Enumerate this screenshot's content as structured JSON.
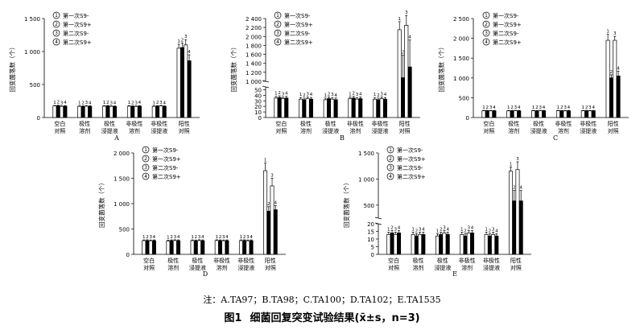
{
  "figure": {
    "label": "图1",
    "title": "细菌回复突变试验结果",
    "stat": "(x̄±s，n=3)",
    "note": "注：A.TA97；B.TA98；C.TA100；D.TA102；E.TA1535"
  },
  "legend_items": [
    {
      "num": "1",
      "label": "第一次S9-",
      "fill": "#ffffff"
    },
    {
      "num": "2",
      "label": "第一次S9+",
      "fill": "#000000"
    },
    {
      "num": "3",
      "label": "第二次S9-",
      "fill": "#ffffff"
    },
    {
      "num": "4",
      "label": "第二次S9+",
      "fill": "#000000"
    }
  ],
  "bar_numbers": [
    "1",
    "2",
    "3",
    "4"
  ],
  "colors": {
    "dark_bar": "#000000",
    "light_bar": "#ffffff",
    "axis": "#000000"
  },
  "chart_data": [
    {
      "type": "bar",
      "panel": "A",
      "ylabel": "回变菌落数（个）",
      "categories": [
        [
          "空白",
          "对照"
        ],
        [
          "极性",
          "溶剂"
        ],
        [
          "极性",
          "浸提液"
        ],
        [
          "非极性",
          "溶剂"
        ],
        [
          "非极性",
          "浸提液"
        ],
        [
          "阳性",
          "对照"
        ]
      ],
      "yticks": [
        "0",
        "500",
        "1 000",
        "1 500"
      ],
      "ylim": [
        0,
        1500
      ],
      "series": [
        {
          "name": "第一次S9-",
          "values": [
            175,
            170,
            172,
            172,
            170,
            1050
          ],
          "errors": [
            8,
            8,
            8,
            8,
            8,
            60
          ]
        },
        {
          "name": "第一次S9+",
          "values": [
            178,
            168,
            175,
            170,
            172,
            1060
          ],
          "errors": [
            8,
            8,
            8,
            8,
            8,
            70
          ]
        },
        {
          "name": "第二次S9-",
          "values": [
            170,
            172,
            170,
            168,
            175,
            1100
          ],
          "errors": [
            8,
            8,
            8,
            8,
            8,
            80
          ]
        },
        {
          "name": "第二次S9+",
          "values": [
            172,
            170,
            168,
            172,
            170,
            860
          ],
          "errors": [
            8,
            8,
            8,
            8,
            8,
            90
          ]
        }
      ]
    },
    {
      "type": "bar",
      "panel": "B",
      "ylabel": "回变菌落数（个）",
      "broken_axis": true,
      "categories": [
        [
          "空白",
          "对照"
        ],
        [
          "极性",
          "溶剂"
        ],
        [
          "极性",
          "浸提液"
        ],
        [
          "非极性",
          "溶剂"
        ],
        [
          "非极性",
          "浸提液"
        ],
        [
          "阳性",
          "对照"
        ]
      ],
      "lower_yticks": [
        "0",
        "10",
        "20",
        "30",
        "40",
        "50"
      ],
      "upper_yticks": [
        "1 000",
        "1 200",
        "1 400",
        "1 600",
        "1 800",
        "2 000",
        "2 200",
        "2 400"
      ],
      "lower_range": [
        0,
        55
      ],
      "upper_range": [
        1000,
        2400
      ],
      "series": [
        {
          "name": "第一次S9-",
          "values": [
            35,
            33,
            32,
            34,
            33,
            2150
          ],
          "errors": [
            3,
            3,
            3,
            3,
            3,
            180
          ]
        },
        {
          "name": "第一次S9+",
          "values": [
            36,
            32,
            34,
            35,
            32,
            1080
          ],
          "errors": [
            3,
            3,
            3,
            3,
            3,
            500
          ]
        },
        {
          "name": "第二次S9-",
          "values": [
            34,
            34,
            33,
            33,
            34,
            2250
          ],
          "errors": [
            3,
            3,
            3,
            3,
            3,
            220
          ]
        },
        {
          "name": "第二次S9+",
          "values": [
            35,
            33,
            32,
            34,
            33,
            1320
          ],
          "errors": [
            3,
            3,
            3,
            3,
            3,
            600
          ]
        }
      ]
    },
    {
      "type": "bar",
      "panel": "C",
      "ylabel": "回变菌落数（个）",
      "categories": [
        [
          "空白",
          "对照"
        ],
        [
          "极性",
          "溶剂"
        ],
        [
          "极性",
          "浸提液"
        ],
        [
          "非极性",
          "溶剂"
        ],
        [
          "非极性",
          "浸提液"
        ],
        [
          "阳性",
          "对照"
        ]
      ],
      "yticks": [
        "0",
        "500",
        "1 000",
        "1 500",
        "2 000",
        "2 500"
      ],
      "ylim": [
        0,
        2500
      ],
      "series": [
        {
          "name": "第一次S9-",
          "values": [
            170,
            168,
            170,
            172,
            170,
            1950
          ],
          "errors": [
            10,
            10,
            10,
            10,
            10,
            150
          ]
        },
        {
          "name": "第一次S9+",
          "values": [
            172,
            170,
            168,
            170,
            172,
            1000
          ],
          "errors": [
            10,
            10,
            10,
            10,
            10,
            80
          ]
        },
        {
          "name": "第二次S9-",
          "values": [
            168,
            172,
            172,
            168,
            168,
            1950
          ],
          "errors": [
            10,
            10,
            10,
            10,
            10,
            100
          ]
        },
        {
          "name": "第二次S9+",
          "values": [
            170,
            170,
            170,
            170,
            170,
            1050
          ],
          "errors": [
            10,
            10,
            10,
            10,
            10,
            120
          ]
        }
      ]
    },
    {
      "type": "bar",
      "panel": "D",
      "ylabel": "回变菌落数（个）",
      "categories": [
        [
          "空白",
          "对照"
        ],
        [
          "极性",
          "溶剂"
        ],
        [
          "极性",
          "浸提液"
        ],
        [
          "非极性",
          "溶剂"
        ],
        [
          "非极性",
          "浸提液"
        ],
        [
          "阳性",
          "对照"
        ]
      ],
      "yticks": [
        "0",
        "500",
        "1 000",
        "1 500",
        "2 000"
      ],
      "ylim": [
        0,
        2000
      ],
      "series": [
        {
          "name": "第一次S9-",
          "values": [
            270,
            265,
            270,
            272,
            270,
            1650
          ],
          "errors": [
            15,
            15,
            15,
            15,
            15,
            150
          ]
        },
        {
          "name": "第一次S9+",
          "values": [
            272,
            270,
            268,
            270,
            272,
            850
          ],
          "errors": [
            15,
            15,
            15,
            15,
            15,
            90
          ]
        },
        {
          "name": "第二次S9-",
          "values": [
            268,
            272,
            272,
            268,
            268,
            1350
          ],
          "errors": [
            15,
            15,
            15,
            15,
            15,
            150
          ]
        },
        {
          "name": "第二次S9+",
          "values": [
            270,
            270,
            270,
            270,
            270,
            880
          ],
          "errors": [
            15,
            15,
            15,
            15,
            15,
            80
          ]
        }
      ]
    },
    {
      "type": "bar",
      "panel": "E",
      "ylabel": "回变菌落数（个）",
      "broken_axis": true,
      "categories": [
        [
          "空白",
          "对照"
        ],
        [
          "极性",
          "溶剂"
        ],
        [
          "极性",
          "浸提液"
        ],
        [
          "非极性",
          "溶剂"
        ],
        [
          "非极性",
          "浸提液"
        ],
        [
          "阳性",
          "对照"
        ]
      ],
      "lower_yticks": [
        "0",
        "5",
        "10",
        "15",
        "20"
      ],
      "upper_yticks": [
        "500",
        "1 000",
        "1 500"
      ],
      "lower_range": [
        0,
        20
      ],
      "upper_range": [
        250,
        1500
      ],
      "series": [
        {
          "name": "第一次S9-",
          "values": [
            13,
            13,
            12,
            13,
            13,
            1150
          ],
          "errors": [
            1.5,
            1.5,
            1.5,
            1.5,
            1.5,
            80
          ]
        },
        {
          "name": "第一次S9+",
          "values": [
            14,
            12,
            13,
            12,
            12,
            580
          ],
          "errors": [
            1.5,
            1.5,
            1.5,
            1.5,
            1.5,
            200
          ]
        },
        {
          "name": "第二次S9-",
          "values": [
            13,
            13,
            14,
            14,
            13,
            1180
          ],
          "errors": [
            1.5,
            1.5,
            1.5,
            1.5,
            1.5,
            150
          ]
        },
        {
          "name": "第二次S9+",
          "values": [
            14,
            13,
            13,
            14,
            12,
            580
          ],
          "errors": [
            1.5,
            1.5,
            1.5,
            1.5,
            1.5,
            200
          ]
        }
      ]
    }
  ]
}
